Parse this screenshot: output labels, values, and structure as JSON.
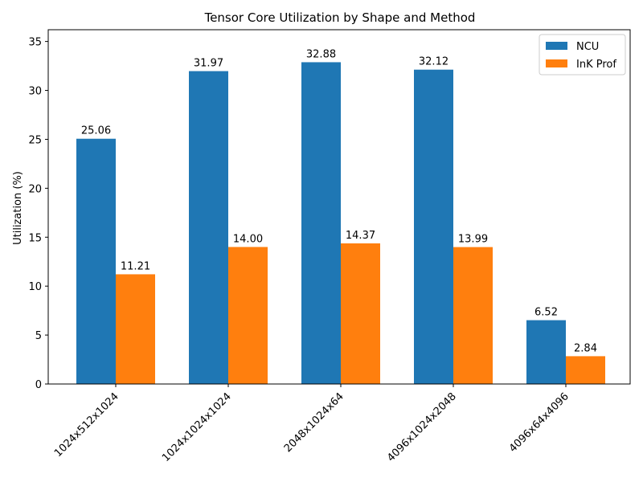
{
  "chart_data": {
    "type": "bar",
    "title": "Tensor Core Utilization by Shape and Method",
    "xlabel": "",
    "ylabel": "Utilization (%)",
    "categories": [
      "1024x512x1024",
      "1024x1024x1024",
      "2048x1024x64",
      "4096x1024x2048",
      "4096x64x4096"
    ],
    "series": [
      {
        "name": "NCU",
        "color": "#1f77b4",
        "values": [
          25.06,
          31.97,
          32.88,
          32.12,
          6.52
        ]
      },
      {
        "name": "InK Prof",
        "color": "#ff7f0e",
        "values": [
          11.21,
          14.0,
          14.37,
          13.99,
          2.84
        ]
      }
    ],
    "value_labels": [
      [
        "25.06",
        "31.97",
        "32.88",
        "32.12",
        "6.52"
      ],
      [
        "11.21",
        "14.00",
        "14.37",
        "13.99",
        "2.84"
      ]
    ],
    "ylim": [
      0,
      36.2
    ],
    "yticks": [
      0,
      5,
      10,
      15,
      20,
      25,
      30,
      35
    ],
    "grid": false,
    "legend_position": "top-right",
    "xtick_rotation": 45
  }
}
